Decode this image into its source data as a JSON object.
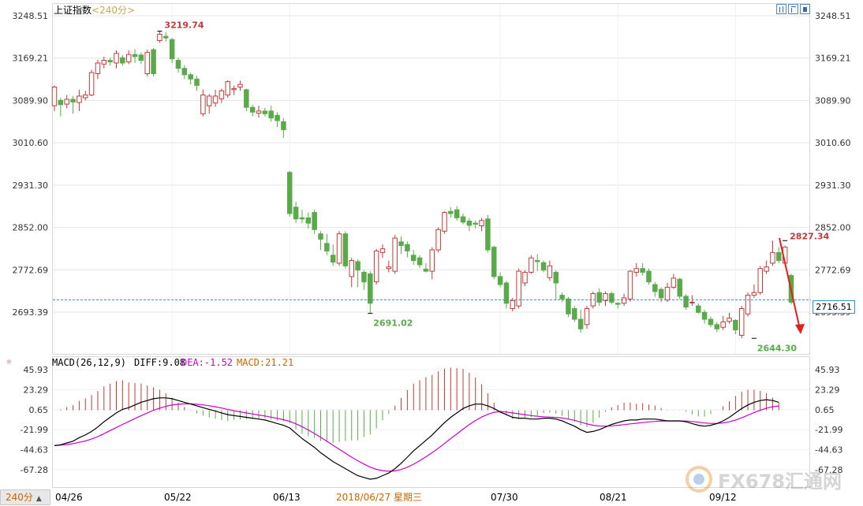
{
  "header": {
    "title": "上证指数",
    "period": "<240分>"
  },
  "toolbar": {
    "icons": [
      "bar-view-icon",
      "window-icon",
      "panel-icon"
    ]
  },
  "macd_legend": {
    "label": "MACD(26,12,9)",
    "diff": "DIFF:9.08",
    "dea": "DEA:-1.52",
    "macd": "MACD:21.21",
    "colors": {
      "diff": "#000000",
      "dea": "#cc00cc",
      "macd": "#cc6600"
    }
  },
  "price_axis": {
    "ticks": [
      "3248.51",
      "3169.21",
      "3089.90",
      "3010.60",
      "2931.30",
      "2852.00",
      "2772.69",
      "2693.39"
    ],
    "current_label": "2716.51",
    "current_value": 2716.51
  },
  "macd_axis": {
    "ticks": [
      "45.93",
      "23.29",
      "0.65",
      "-21.99",
      "-44.63",
      "-67.28"
    ]
  },
  "annotations": {
    "high1": "3219.74",
    "low1": "2691.02",
    "low2": "2644.30",
    "high2": "2827.34"
  },
  "footer": {
    "period_button": "240分",
    "dates": [
      "04/26",
      "05/22",
      "06/13",
      "2018/06/27 星期三",
      "07/30",
      "08/21",
      "09/12"
    ]
  },
  "watermark": "FX678汇通网",
  "colors": {
    "up": "#c23b3b",
    "down": "#5aaa4c",
    "dash": "#3a8fc1",
    "grid": "#e4e4e4"
  },
  "chart_data": {
    "type": "candlestick",
    "title": "上证指数",
    "ylim": [
      2620,
      3260
    ],
    "candles": [
      {
        "o": 3080,
        "c": 3115,
        "h": 3118,
        "l": 3070
      },
      {
        "o": 3090,
        "c": 3082,
        "h": 3095,
        "l": 3060
      },
      {
        "o": 3083,
        "c": 3092,
        "h": 3100,
        "l": 3075
      },
      {
        "o": 3092,
        "c": 3087,
        "h": 3098,
        "l": 3065
      },
      {
        "o": 3086,
        "c": 3098,
        "h": 3110,
        "l": 3070
      },
      {
        "o": 3095,
        "c": 3100,
        "h": 3108,
        "l": 3090
      },
      {
        "o": 3100,
        "c": 3142,
        "h": 3147,
        "l": 3098
      },
      {
        "o": 3140,
        "c": 3160,
        "h": 3166,
        "l": 3130
      },
      {
        "o": 3158,
        "c": 3165,
        "h": 3172,
        "l": 3150
      },
      {
        "o": 3165,
        "c": 3162,
        "h": 3170,
        "l": 3155
      },
      {
        "o": 3160,
        "c": 3178,
        "h": 3184,
        "l": 3150
      },
      {
        "o": 3170,
        "c": 3160,
        "h": 3175,
        "l": 3155
      },
      {
        "o": 3162,
        "c": 3176,
        "h": 3184,
        "l": 3158
      },
      {
        "o": 3176,
        "c": 3172,
        "h": 3186,
        "l": 3160
      },
      {
        "o": 3175,
        "c": 3165,
        "h": 3180,
        "l": 3158
      },
      {
        "o": 3140,
        "c": 3180,
        "h": 3185,
        "l": 3135
      },
      {
        "o": 3185,
        "c": 3140,
        "h": 3188,
        "l": 3135
      },
      {
        "o": 3202,
        "c": 3214,
        "h": 3219.74,
        "l": 3198
      },
      {
        "o": 3210,
        "c": 3207,
        "h": 3218,
        "l": 3200
      },
      {
        "o": 3204,
        "c": 3168,
        "h": 3207,
        "l": 3160
      },
      {
        "o": 3165,
        "c": 3150,
        "h": 3170,
        "l": 3142
      },
      {
        "o": 3150,
        "c": 3138,
        "h": 3156,
        "l": 3130
      },
      {
        "o": 3138,
        "c": 3130,
        "h": 3142,
        "l": 3120
      },
      {
        "o": 3130,
        "c": 3118,
        "h": 3136,
        "l": 3108
      },
      {
        "o": 3065,
        "c": 3100,
        "h": 3110,
        "l": 3060
      },
      {
        "o": 3080,
        "c": 3098,
        "h": 3102,
        "l": 3065
      },
      {
        "o": 3085,
        "c": 3098,
        "h": 3110,
        "l": 3078
      },
      {
        "o": 3093,
        "c": 3108,
        "h": 3112,
        "l": 3085
      },
      {
        "o": 3100,
        "c": 3125,
        "h": 3128,
        "l": 3095
      },
      {
        "o": 3110,
        "c": 3112,
        "h": 3118,
        "l": 3100
      },
      {
        "o": 3115,
        "c": 3120,
        "h": 3127,
        "l": 3108
      },
      {
        "o": 3110,
        "c": 3077,
        "h": 3112,
        "l": 3070
      },
      {
        "o": 3077,
        "c": 3068,
        "h": 3082,
        "l": 3060
      },
      {
        "o": 3066,
        "c": 3070,
        "h": 3080,
        "l": 3058
      },
      {
        "o": 3070,
        "c": 3065,
        "h": 3076,
        "l": 3060
      },
      {
        "o": 3070,
        "c": 3057,
        "h": 3080,
        "l": 3050
      },
      {
        "o": 3062,
        "c": 3052,
        "h": 3068,
        "l": 3040
      },
      {
        "o": 3050,
        "c": 3035,
        "h": 3057,
        "l": 3020
      },
      {
        "o": 2955,
        "c": 2878,
        "h": 2958,
        "l": 2872
      },
      {
        "o": 2890,
        "c": 2868,
        "h": 2900,
        "l": 2860
      },
      {
        "o": 2870,
        "c": 2868,
        "h": 2885,
        "l": 2860
      },
      {
        "o": 2870,
        "c": 2860,
        "h": 2880,
        "l": 2850
      },
      {
        "o": 2880,
        "c": 2848,
        "h": 2885,
        "l": 2840
      },
      {
        "o": 2840,
        "c": 2830,
        "h": 2845,
        "l": 2810
      },
      {
        "o": 2822,
        "c": 2808,
        "h": 2840,
        "l": 2800
      },
      {
        "o": 2800,
        "c": 2787,
        "h": 2820,
        "l": 2780
      },
      {
        "o": 2785,
        "c": 2840,
        "h": 2845,
        "l": 2780
      },
      {
        "o": 2840,
        "c": 2780,
        "h": 2845,
        "l": 2775
      },
      {
        "o": 2760,
        "c": 2790,
        "h": 2795,
        "l": 2740
      },
      {
        "o": 2788,
        "c": 2772,
        "h": 2792,
        "l": 2740
      },
      {
        "o": 2768,
        "c": 2750,
        "h": 2772,
        "l": 2735
      },
      {
        "o": 2765,
        "c": 2710,
        "h": 2770,
        "l": 2691.02
      },
      {
        "o": 2750,
        "c": 2808,
        "h": 2812,
        "l": 2745
      },
      {
        "o": 2805,
        "c": 2812,
        "h": 2820,
        "l": 2795
      },
      {
        "o": 2775,
        "c": 2778,
        "h": 2790,
        "l": 2768
      },
      {
        "o": 2770,
        "c": 2832,
        "h": 2838,
        "l": 2765
      },
      {
        "o": 2825,
        "c": 2818,
        "h": 2835,
        "l": 2802
      },
      {
        "o": 2820,
        "c": 2808,
        "h": 2826,
        "l": 2796
      },
      {
        "o": 2800,
        "c": 2790,
        "h": 2810,
        "l": 2782
      },
      {
        "o": 2795,
        "c": 2782,
        "h": 2800,
        "l": 2776
      },
      {
        "o": 2774,
        "c": 2770,
        "h": 2785,
        "l": 2768
      },
      {
        "o": 2770,
        "c": 2810,
        "h": 2815,
        "l": 2755
      },
      {
        "o": 2810,
        "c": 2848,
        "h": 2852,
        "l": 2805
      },
      {
        "o": 2845,
        "c": 2880,
        "h": 2882,
        "l": 2840
      },
      {
        "o": 2882,
        "c": 2878,
        "h": 2890,
        "l": 2870
      },
      {
        "o": 2885,
        "c": 2870,
        "h": 2892,
        "l": 2865
      },
      {
        "o": 2872,
        "c": 2862,
        "h": 2878,
        "l": 2858
      },
      {
        "o": 2864,
        "c": 2856,
        "h": 2870,
        "l": 2845
      },
      {
        "o": 2860,
        "c": 2858,
        "h": 2865,
        "l": 2850
      },
      {
        "o": 2855,
        "c": 2865,
        "h": 2870,
        "l": 2845
      },
      {
        "o": 2868,
        "c": 2810,
        "h": 2875,
        "l": 2805
      },
      {
        "o": 2815,
        "c": 2760,
        "h": 2818,
        "l": 2755
      },
      {
        "o": 2760,
        "c": 2745,
        "h": 2768,
        "l": 2740
      },
      {
        "o": 2748,
        "c": 2710,
        "h": 2752,
        "l": 2700
      },
      {
        "o": 2700,
        "c": 2715,
        "h": 2720,
        "l": 2695
      },
      {
        "o": 2705,
        "c": 2770,
        "h": 2775,
        "l": 2700
      },
      {
        "o": 2748,
        "c": 2768,
        "h": 2772,
        "l": 2742
      },
      {
        "o": 2768,
        "c": 2795,
        "h": 2800,
        "l": 2765
      },
      {
        "o": 2790,
        "c": 2788,
        "h": 2802,
        "l": 2770
      },
      {
        "o": 2786,
        "c": 2772,
        "h": 2790,
        "l": 2768
      },
      {
        "o": 2758,
        "c": 2780,
        "h": 2790,
        "l": 2752
      },
      {
        "o": 2768,
        "c": 2748,
        "h": 2772,
        "l": 2715
      },
      {
        "o": 2725,
        "c": 2718,
        "h": 2730,
        "l": 2712
      },
      {
        "o": 2718,
        "c": 2690,
        "h": 2722,
        "l": 2684
      },
      {
        "o": 2700,
        "c": 2680,
        "h": 2705,
        "l": 2675
      },
      {
        "o": 2680,
        "c": 2662,
        "h": 2698,
        "l": 2655
      },
      {
        "o": 2670,
        "c": 2700,
        "h": 2705,
        "l": 2662
      },
      {
        "o": 2705,
        "c": 2728,
        "h": 2732,
        "l": 2700
      },
      {
        "o": 2730,
        "c": 2712,
        "h": 2738,
        "l": 2705
      },
      {
        "o": 2715,
        "c": 2728,
        "h": 2732,
        "l": 2705
      },
      {
        "o": 2728,
        "c": 2712,
        "h": 2732,
        "l": 2708
      },
      {
        "o": 2710,
        "c": 2708,
        "h": 2712,
        "l": 2700
      },
      {
        "o": 2710,
        "c": 2720,
        "h": 2728,
        "l": 2705
      },
      {
        "o": 2718,
        "c": 2770,
        "h": 2772,
        "l": 2713
      },
      {
        "o": 2768,
        "c": 2775,
        "h": 2785,
        "l": 2760
      },
      {
        "o": 2775,
        "c": 2768,
        "h": 2785,
        "l": 2762
      },
      {
        "o": 2770,
        "c": 2750,
        "h": 2775,
        "l": 2745
      },
      {
        "o": 2745,
        "c": 2732,
        "h": 2750,
        "l": 2722
      },
      {
        "o": 2736,
        "c": 2720,
        "h": 2740,
        "l": 2712
      },
      {
        "o": 2716,
        "c": 2740,
        "h": 2748,
        "l": 2712
      },
      {
        "o": 2740,
        "c": 2757,
        "h": 2765,
        "l": 2737
      },
      {
        "o": 2755,
        "c": 2723,
        "h": 2758,
        "l": 2718
      },
      {
        "o": 2723,
        "c": 2703,
        "h": 2727,
        "l": 2698
      },
      {
        "o": 2712,
        "c": 2712,
        "h": 2725,
        "l": 2705
      },
      {
        "o": 2705,
        "c": 2693,
        "h": 2710,
        "l": 2690
      },
      {
        "o": 2693,
        "c": 2680,
        "h": 2698,
        "l": 2672
      },
      {
        "o": 2680,
        "c": 2670,
        "h": 2685,
        "l": 2665
      },
      {
        "o": 2670,
        "c": 2662,
        "h": 2675,
        "l": 2656
      },
      {
        "o": 2665,
        "c": 2675,
        "h": 2686,
        "l": 2660
      },
      {
        "o": 2676,
        "c": 2682,
        "h": 2692,
        "l": 2672
      },
      {
        "o": 2678,
        "c": 2660,
        "h": 2680,
        "l": 2652
      },
      {
        "o": 2650,
        "c": 2700,
        "h": 2705,
        "l": 2644.3
      },
      {
        "o": 2690,
        "c": 2725,
        "h": 2730,
        "l": 2685
      },
      {
        "o": 2725,
        "c": 2730,
        "h": 2745,
        "l": 2720
      },
      {
        "o": 2730,
        "c": 2775,
        "h": 2780,
        "l": 2726
      },
      {
        "o": 2770,
        "c": 2778,
        "h": 2790,
        "l": 2765
      },
      {
        "o": 2785,
        "c": 2805,
        "h": 2827.34,
        "l": 2780
      },
      {
        "o": 2805,
        "c": 2790,
        "h": 2815,
        "l": 2785
      },
      {
        "o": 2785,
        "c": 2815,
        "h": 2818,
        "l": 2780
      },
      {
        "o": 2762,
        "c": 2712,
        "h": 2765,
        "l": 2708
      }
    ],
    "macd": {
      "diff": [
        -40,
        -39,
        -37,
        -35,
        -31,
        -28,
        -24,
        -19,
        -13,
        -8,
        -3,
        1,
        3,
        6,
        9,
        11,
        13,
        14,
        14,
        13,
        11,
        9,
        7,
        5,
        3,
        1,
        -1,
        -3,
        -5,
        -6,
        -7,
        -8,
        -9,
        -10,
        -11,
        -13,
        -15,
        -17,
        -20,
        -26,
        -32,
        -37,
        -42,
        -48,
        -53,
        -58,
        -62,
        -66,
        -70,
        -74,
        -76,
        -78,
        -77,
        -74,
        -71,
        -66,
        -60,
        -53,
        -46,
        -40,
        -34,
        -28,
        -21,
        -14,
        -8,
        -3,
        2,
        5,
        7,
        7,
        5,
        2,
        -2,
        -5,
        -8,
        -9,
        -9,
        -10,
        -10,
        -9,
        -9,
        -10,
        -12,
        -15,
        -18,
        -22,
        -25,
        -24,
        -22,
        -19,
        -16,
        -14,
        -12,
        -11,
        -11,
        -10,
        -10,
        -10,
        -11,
        -12,
        -12,
        -12,
        -13,
        -15,
        -17,
        -18,
        -17,
        -15,
        -12,
        -8,
        -3,
        2,
        6,
        9,
        11,
        12,
        11,
        9
      ],
      "dea": [
        -40,
        -39.5,
        -38.8,
        -37.8,
        -36.3,
        -34.7,
        -32.6,
        -29.8,
        -26.5,
        -23,
        -19.5,
        -16,
        -12.7,
        -9.4,
        -6.1,
        -3,
        0,
        2.4,
        4.4,
        5.9,
        6.8,
        7.2,
        7.2,
        6.8,
        6.1,
        5.1,
        3.9,
        2.5,
        1,
        -0.5,
        -1.8,
        -3,
        -4.2,
        -5.4,
        -6.5,
        -7.8,
        -9.2,
        -10.7,
        -12.6,
        -15.3,
        -18.6,
        -22.3,
        -26.3,
        -30.6,
        -35,
        -39.6,
        -44.1,
        -48.6,
        -53,
        -57.1,
        -60.9,
        -64.3,
        -66.8,
        -68.3,
        -69,
        -68.6,
        -67,
        -64.4,
        -61,
        -57,
        -52.7,
        -48,
        -43,
        -37.6,
        -32.1,
        -26.8,
        -21.4,
        -16.2,
        -11.6,
        -7.7,
        -4.6,
        -2.3,
        -1.5,
        -2,
        -3,
        -4,
        -5,
        -6,
        -6.8,
        -7.4,
        -7.7,
        -8.1,
        -8.8,
        -10,
        -11.4,
        -13.4,
        -15.4,
        -16.9,
        -17.8,
        -18,
        -17.6,
        -17,
        -16.3,
        -15.4,
        -14.7,
        -14,
        -13.2,
        -12.6,
        -12.3,
        -12.2,
        -12.1,
        -12.1,
        -12.2,
        -12.7,
        -13.5,
        -14.4,
        -14.9,
        -14.9,
        -14.3,
        -13.1,
        -11.1,
        -8.5,
        -5.6,
        -2.6,
        0,
        2.3,
        3.9,
        4.8
      ]
    },
    "xlabels": [
      "04/26",
      "05/22",
      "06/13",
      "07/30",
      "08/21",
      "09/12"
    ],
    "crosshair_date": "2018/06/27 星期三"
  }
}
